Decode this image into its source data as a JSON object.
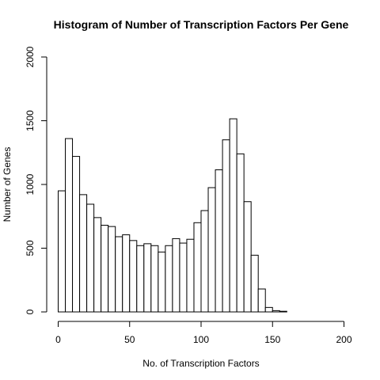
{
  "chart_data": {
    "type": "bar",
    "title": "Histogram of Number of Transcription Factors Per Gene",
    "xlabel": "No. of Transcription Factors",
    "ylabel": "Number of Genes",
    "xlim": [
      0,
      200
    ],
    "ylim": [
      0,
      2000
    ],
    "x_ticks": [
      0,
      50,
      100,
      150,
      200
    ],
    "y_ticks": [
      0,
      500,
      1000,
      1500,
      2000
    ],
    "bin_width": 5,
    "bin_start": 0,
    "values": [
      950,
      1360,
      1220,
      920,
      845,
      740,
      680,
      670,
      590,
      605,
      560,
      520,
      535,
      520,
      470,
      520,
      575,
      540,
      570,
      700,
      795,
      975,
      1115,
      1350,
      1515,
      1240,
      865,
      445,
      180,
      35,
      10,
      5,
      0
    ],
    "colors": {
      "bar_fill": "#ffffff",
      "bar_stroke": "#000000"
    }
  }
}
